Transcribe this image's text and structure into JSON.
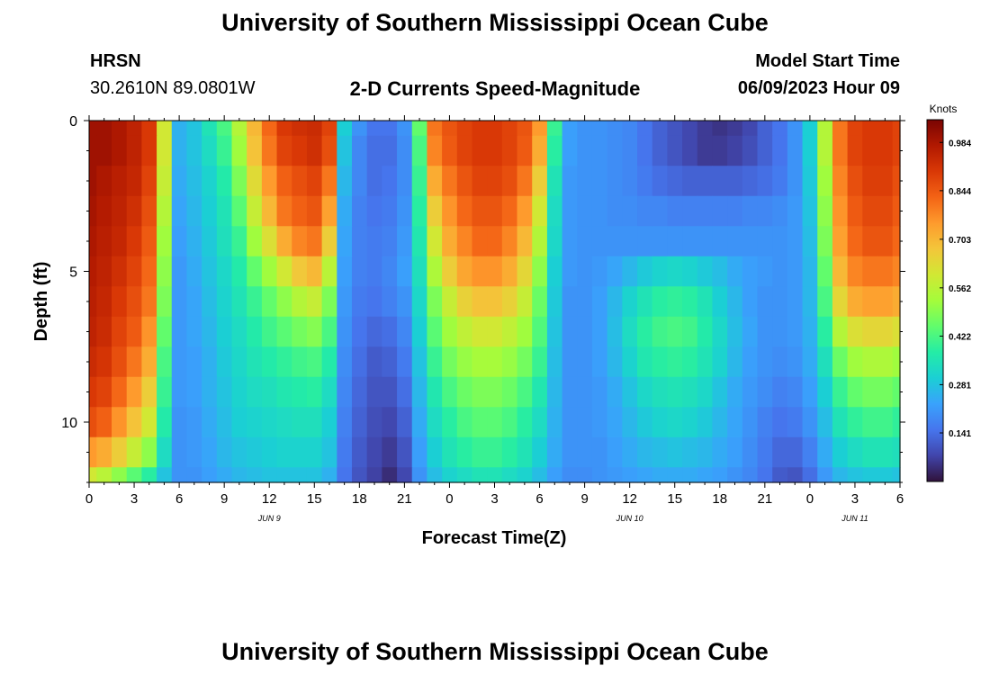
{
  "header": {
    "title": "University of Southern Mississippi Ocean Cube",
    "station": "HRSN",
    "coords": "30.2610N  89.0801W",
    "plot_title": "2-D Currents Speed-Magnitude",
    "model_label": "Model Start Time",
    "model_time": "06/09/2023 Hour 09"
  },
  "footer": {
    "title": "University of Southern Mississippi Ocean Cube"
  },
  "colors": {
    "background": "#ffffff",
    "text": "#000000"
  },
  "chart_data": {
    "type": "heatmap",
    "title": "2-D Currents Speed-Magnitude",
    "xlabel": "Forecast Time(Z)",
    "ylabel": "Depth (ft)",
    "colorbar_label": "Knots",
    "colorbar_ticks": [
      "0.984",
      "0.844",
      "0.703",
      "0.562",
      "0.422",
      "0.281",
      "0.141"
    ],
    "colorbar_values": [
      0.984,
      0.844,
      0.703,
      0.562,
      0.422,
      0.281,
      0.141
    ],
    "colorbar_range": [
      0.0,
      1.05
    ],
    "colormap": [
      "#30123b",
      "#4145ab",
      "#4675ed",
      "#39a2fc",
      "#1bcfd4",
      "#24eca6",
      "#61fc6c",
      "#a4fc3b",
      "#d1e834",
      "#f3c63a",
      "#fe9b2d",
      "#f36315",
      "#d93806",
      "#b11901",
      "#7a0403"
    ],
    "x_ticks": [
      "0",
      "3",
      "6",
      "9",
      "12",
      "15",
      "18",
      "21",
      "0",
      "3",
      "6",
      "9",
      "12",
      "15",
      "18",
      "21",
      "0",
      "3",
      "6"
    ],
    "x_range_hours": [
      0,
      54
    ],
    "date_labels": [
      {
        "label": "JUN 9",
        "hour": 12
      },
      {
        "label": "JUN 10",
        "hour": 36
      },
      {
        "label": "JUN 11",
        "hour": 51
      }
    ],
    "y_ticks": [
      "0",
      "5",
      "10"
    ],
    "y_range_ft": [
      0,
      12
    ],
    "grid": false,
    "speed_knots_hourly_by_depth": {
      "depths_ft": [
        0,
        1,
        2,
        3,
        4,
        5,
        6,
        7,
        8,
        9,
        10,
        11,
        12
      ],
      "rows": [
        [
          1.0,
          1.0,
          0.98,
          0.95,
          0.9,
          0.6,
          0.25,
          0.28,
          0.35,
          0.42,
          0.55,
          0.7,
          0.82,
          0.9,
          0.92,
          0.93,
          0.88,
          0.3,
          0.2,
          0.15,
          0.15,
          0.2,
          0.45,
          0.8,
          0.85,
          0.88,
          0.9,
          0.9,
          0.88,
          0.85,
          0.75,
          0.4,
          0.22,
          0.2,
          0.2,
          0.19,
          0.18,
          0.15,
          0.12,
          0.1,
          0.08,
          0.06,
          0.05,
          0.06,
          0.08,
          0.12,
          0.15,
          0.2,
          0.3,
          0.55,
          0.8,
          0.88,
          0.9,
          0.9,
          0.88
        ],
        [
          1.0,
          1.0,
          0.98,
          0.95,
          0.9,
          0.6,
          0.25,
          0.28,
          0.33,
          0.4,
          0.52,
          0.68,
          0.8,
          0.88,
          0.9,
          0.92,
          0.86,
          0.28,
          0.18,
          0.14,
          0.14,
          0.19,
          0.42,
          0.78,
          0.84,
          0.88,
          0.9,
          0.9,
          0.88,
          0.84,
          0.72,
          0.38,
          0.22,
          0.2,
          0.2,
          0.19,
          0.18,
          0.15,
          0.12,
          0.1,
          0.08,
          0.06,
          0.06,
          0.07,
          0.09,
          0.12,
          0.15,
          0.2,
          0.3,
          0.55,
          0.8,
          0.88,
          0.9,
          0.9,
          0.88
        ],
        [
          1.0,
          0.98,
          0.96,
          0.94,
          0.88,
          0.58,
          0.24,
          0.27,
          0.31,
          0.37,
          0.48,
          0.63,
          0.75,
          0.83,
          0.86,
          0.88,
          0.8,
          0.26,
          0.18,
          0.14,
          0.15,
          0.19,
          0.4,
          0.72,
          0.8,
          0.85,
          0.88,
          0.88,
          0.86,
          0.8,
          0.66,
          0.35,
          0.21,
          0.2,
          0.2,
          0.19,
          0.18,
          0.16,
          0.14,
          0.13,
          0.12,
          0.12,
          0.12,
          0.12,
          0.13,
          0.14,
          0.16,
          0.2,
          0.29,
          0.52,
          0.78,
          0.86,
          0.89,
          0.89,
          0.86
        ],
        [
          0.99,
          0.97,
          0.95,
          0.92,
          0.86,
          0.55,
          0.23,
          0.26,
          0.3,
          0.35,
          0.44,
          0.58,
          0.7,
          0.8,
          0.83,
          0.85,
          0.74,
          0.24,
          0.17,
          0.15,
          0.16,
          0.2,
          0.38,
          0.66,
          0.76,
          0.82,
          0.85,
          0.85,
          0.82,
          0.75,
          0.6,
          0.33,
          0.21,
          0.2,
          0.2,
          0.19,
          0.19,
          0.18,
          0.18,
          0.17,
          0.17,
          0.17,
          0.17,
          0.17,
          0.18,
          0.18,
          0.19,
          0.21,
          0.28,
          0.5,
          0.76,
          0.84,
          0.87,
          0.87,
          0.84
        ],
        [
          0.98,
          0.96,
          0.94,
          0.9,
          0.84,
          0.52,
          0.22,
          0.25,
          0.29,
          0.34,
          0.4,
          0.52,
          0.62,
          0.72,
          0.78,
          0.8,
          0.66,
          0.23,
          0.17,
          0.16,
          0.17,
          0.21,
          0.36,
          0.6,
          0.72,
          0.78,
          0.82,
          0.82,
          0.78,
          0.7,
          0.55,
          0.32,
          0.21,
          0.2,
          0.2,
          0.2,
          0.2,
          0.2,
          0.2,
          0.2,
          0.2,
          0.2,
          0.2,
          0.2,
          0.2,
          0.2,
          0.2,
          0.21,
          0.27,
          0.48,
          0.74,
          0.82,
          0.85,
          0.85,
          0.82
        ],
        [
          0.97,
          0.95,
          0.92,
          0.88,
          0.82,
          0.5,
          0.21,
          0.24,
          0.28,
          0.32,
          0.37,
          0.45,
          0.52,
          0.6,
          0.67,
          0.7,
          0.56,
          0.22,
          0.17,
          0.16,
          0.18,
          0.22,
          0.34,
          0.54,
          0.66,
          0.73,
          0.76,
          0.76,
          0.72,
          0.64,
          0.5,
          0.3,
          0.21,
          0.2,
          0.21,
          0.23,
          0.26,
          0.29,
          0.31,
          0.32,
          0.31,
          0.29,
          0.27,
          0.24,
          0.22,
          0.21,
          0.2,
          0.21,
          0.26,
          0.45,
          0.7,
          0.78,
          0.8,
          0.8,
          0.78
        ],
        [
          0.96,
          0.94,
          0.9,
          0.86,
          0.8,
          0.48,
          0.21,
          0.23,
          0.27,
          0.31,
          0.35,
          0.4,
          0.45,
          0.5,
          0.55,
          0.58,
          0.48,
          0.21,
          0.16,
          0.15,
          0.17,
          0.2,
          0.32,
          0.48,
          0.58,
          0.65,
          0.68,
          0.68,
          0.65,
          0.58,
          0.46,
          0.29,
          0.2,
          0.2,
          0.22,
          0.26,
          0.31,
          0.35,
          0.38,
          0.39,
          0.38,
          0.35,
          0.3,
          0.26,
          0.22,
          0.2,
          0.2,
          0.21,
          0.26,
          0.42,
          0.64,
          0.72,
          0.74,
          0.74,
          0.72
        ],
        [
          0.95,
          0.93,
          0.88,
          0.84,
          0.76,
          0.45,
          0.21,
          0.23,
          0.26,
          0.3,
          0.33,
          0.37,
          0.41,
          0.44,
          0.47,
          0.49,
          0.42,
          0.2,
          0.15,
          0.13,
          0.14,
          0.18,
          0.3,
          0.44,
          0.52,
          0.57,
          0.6,
          0.6,
          0.57,
          0.52,
          0.43,
          0.28,
          0.2,
          0.2,
          0.22,
          0.27,
          0.33,
          0.38,
          0.41,
          0.42,
          0.41,
          0.37,
          0.32,
          0.27,
          0.23,
          0.2,
          0.2,
          0.21,
          0.25,
          0.38,
          0.55,
          0.62,
          0.64,
          0.64,
          0.62
        ],
        [
          0.93,
          0.91,
          0.86,
          0.8,
          0.72,
          0.42,
          0.21,
          0.22,
          0.25,
          0.29,
          0.32,
          0.35,
          0.37,
          0.39,
          0.41,
          0.42,
          0.37,
          0.19,
          0.14,
          0.11,
          0.12,
          0.16,
          0.28,
          0.4,
          0.47,
          0.51,
          0.53,
          0.53,
          0.51,
          0.47,
          0.4,
          0.27,
          0.2,
          0.2,
          0.22,
          0.26,
          0.31,
          0.36,
          0.38,
          0.39,
          0.38,
          0.35,
          0.31,
          0.26,
          0.22,
          0.2,
          0.19,
          0.2,
          0.24,
          0.34,
          0.46,
          0.52,
          0.54,
          0.54,
          0.52
        ],
        [
          0.9,
          0.88,
          0.82,
          0.75,
          0.66,
          0.4,
          0.21,
          0.22,
          0.25,
          0.28,
          0.31,
          0.33,
          0.34,
          0.36,
          0.37,
          0.38,
          0.33,
          0.18,
          0.13,
          0.1,
          0.1,
          0.14,
          0.26,
          0.36,
          0.42,
          0.46,
          0.48,
          0.48,
          0.46,
          0.42,
          0.36,
          0.26,
          0.2,
          0.2,
          0.21,
          0.24,
          0.28,
          0.32,
          0.34,
          0.35,
          0.34,
          0.32,
          0.28,
          0.24,
          0.21,
          0.19,
          0.17,
          0.18,
          0.22,
          0.3,
          0.4,
          0.45,
          0.47,
          0.47,
          0.45
        ],
        [
          0.86,
          0.83,
          0.76,
          0.68,
          0.6,
          0.37,
          0.2,
          0.21,
          0.24,
          0.27,
          0.3,
          0.31,
          0.32,
          0.33,
          0.34,
          0.34,
          0.3,
          0.17,
          0.12,
          0.09,
          0.08,
          0.12,
          0.24,
          0.33,
          0.38,
          0.42,
          0.44,
          0.44,
          0.42,
          0.38,
          0.33,
          0.25,
          0.2,
          0.2,
          0.21,
          0.23,
          0.26,
          0.29,
          0.31,
          0.32,
          0.31,
          0.29,
          0.26,
          0.23,
          0.2,
          0.17,
          0.15,
          0.16,
          0.2,
          0.27,
          0.35,
          0.39,
          0.41,
          0.41,
          0.39
        ],
        [
          0.75,
          0.72,
          0.66,
          0.58,
          0.5,
          0.33,
          0.2,
          0.21,
          0.23,
          0.26,
          0.28,
          0.29,
          0.3,
          0.31,
          0.31,
          0.31,
          0.28,
          0.16,
          0.11,
          0.08,
          0.06,
          0.1,
          0.22,
          0.3,
          0.35,
          0.38,
          0.4,
          0.4,
          0.38,
          0.35,
          0.3,
          0.24,
          0.2,
          0.2,
          0.2,
          0.22,
          0.24,
          0.26,
          0.27,
          0.28,
          0.27,
          0.26,
          0.24,
          0.22,
          0.19,
          0.16,
          0.13,
          0.13,
          0.17,
          0.24,
          0.3,
          0.33,
          0.35,
          0.35,
          0.34
        ],
        [
          0.6,
          0.56,
          0.5,
          0.44,
          0.38,
          0.28,
          0.2,
          0.2,
          0.22,
          0.24,
          0.26,
          0.27,
          0.28,
          0.28,
          0.28,
          0.28,
          0.25,
          0.15,
          0.1,
          0.07,
          0.04,
          0.08,
          0.2,
          0.27,
          0.31,
          0.33,
          0.35,
          0.35,
          0.33,
          0.31,
          0.27,
          0.22,
          0.19,
          0.19,
          0.2,
          0.21,
          0.22,
          0.23,
          0.24,
          0.24,
          0.24,
          0.23,
          0.22,
          0.2,
          0.18,
          0.15,
          0.11,
          0.1,
          0.14,
          0.21,
          0.26,
          0.28,
          0.29,
          0.29,
          0.28
        ]
      ]
    }
  }
}
